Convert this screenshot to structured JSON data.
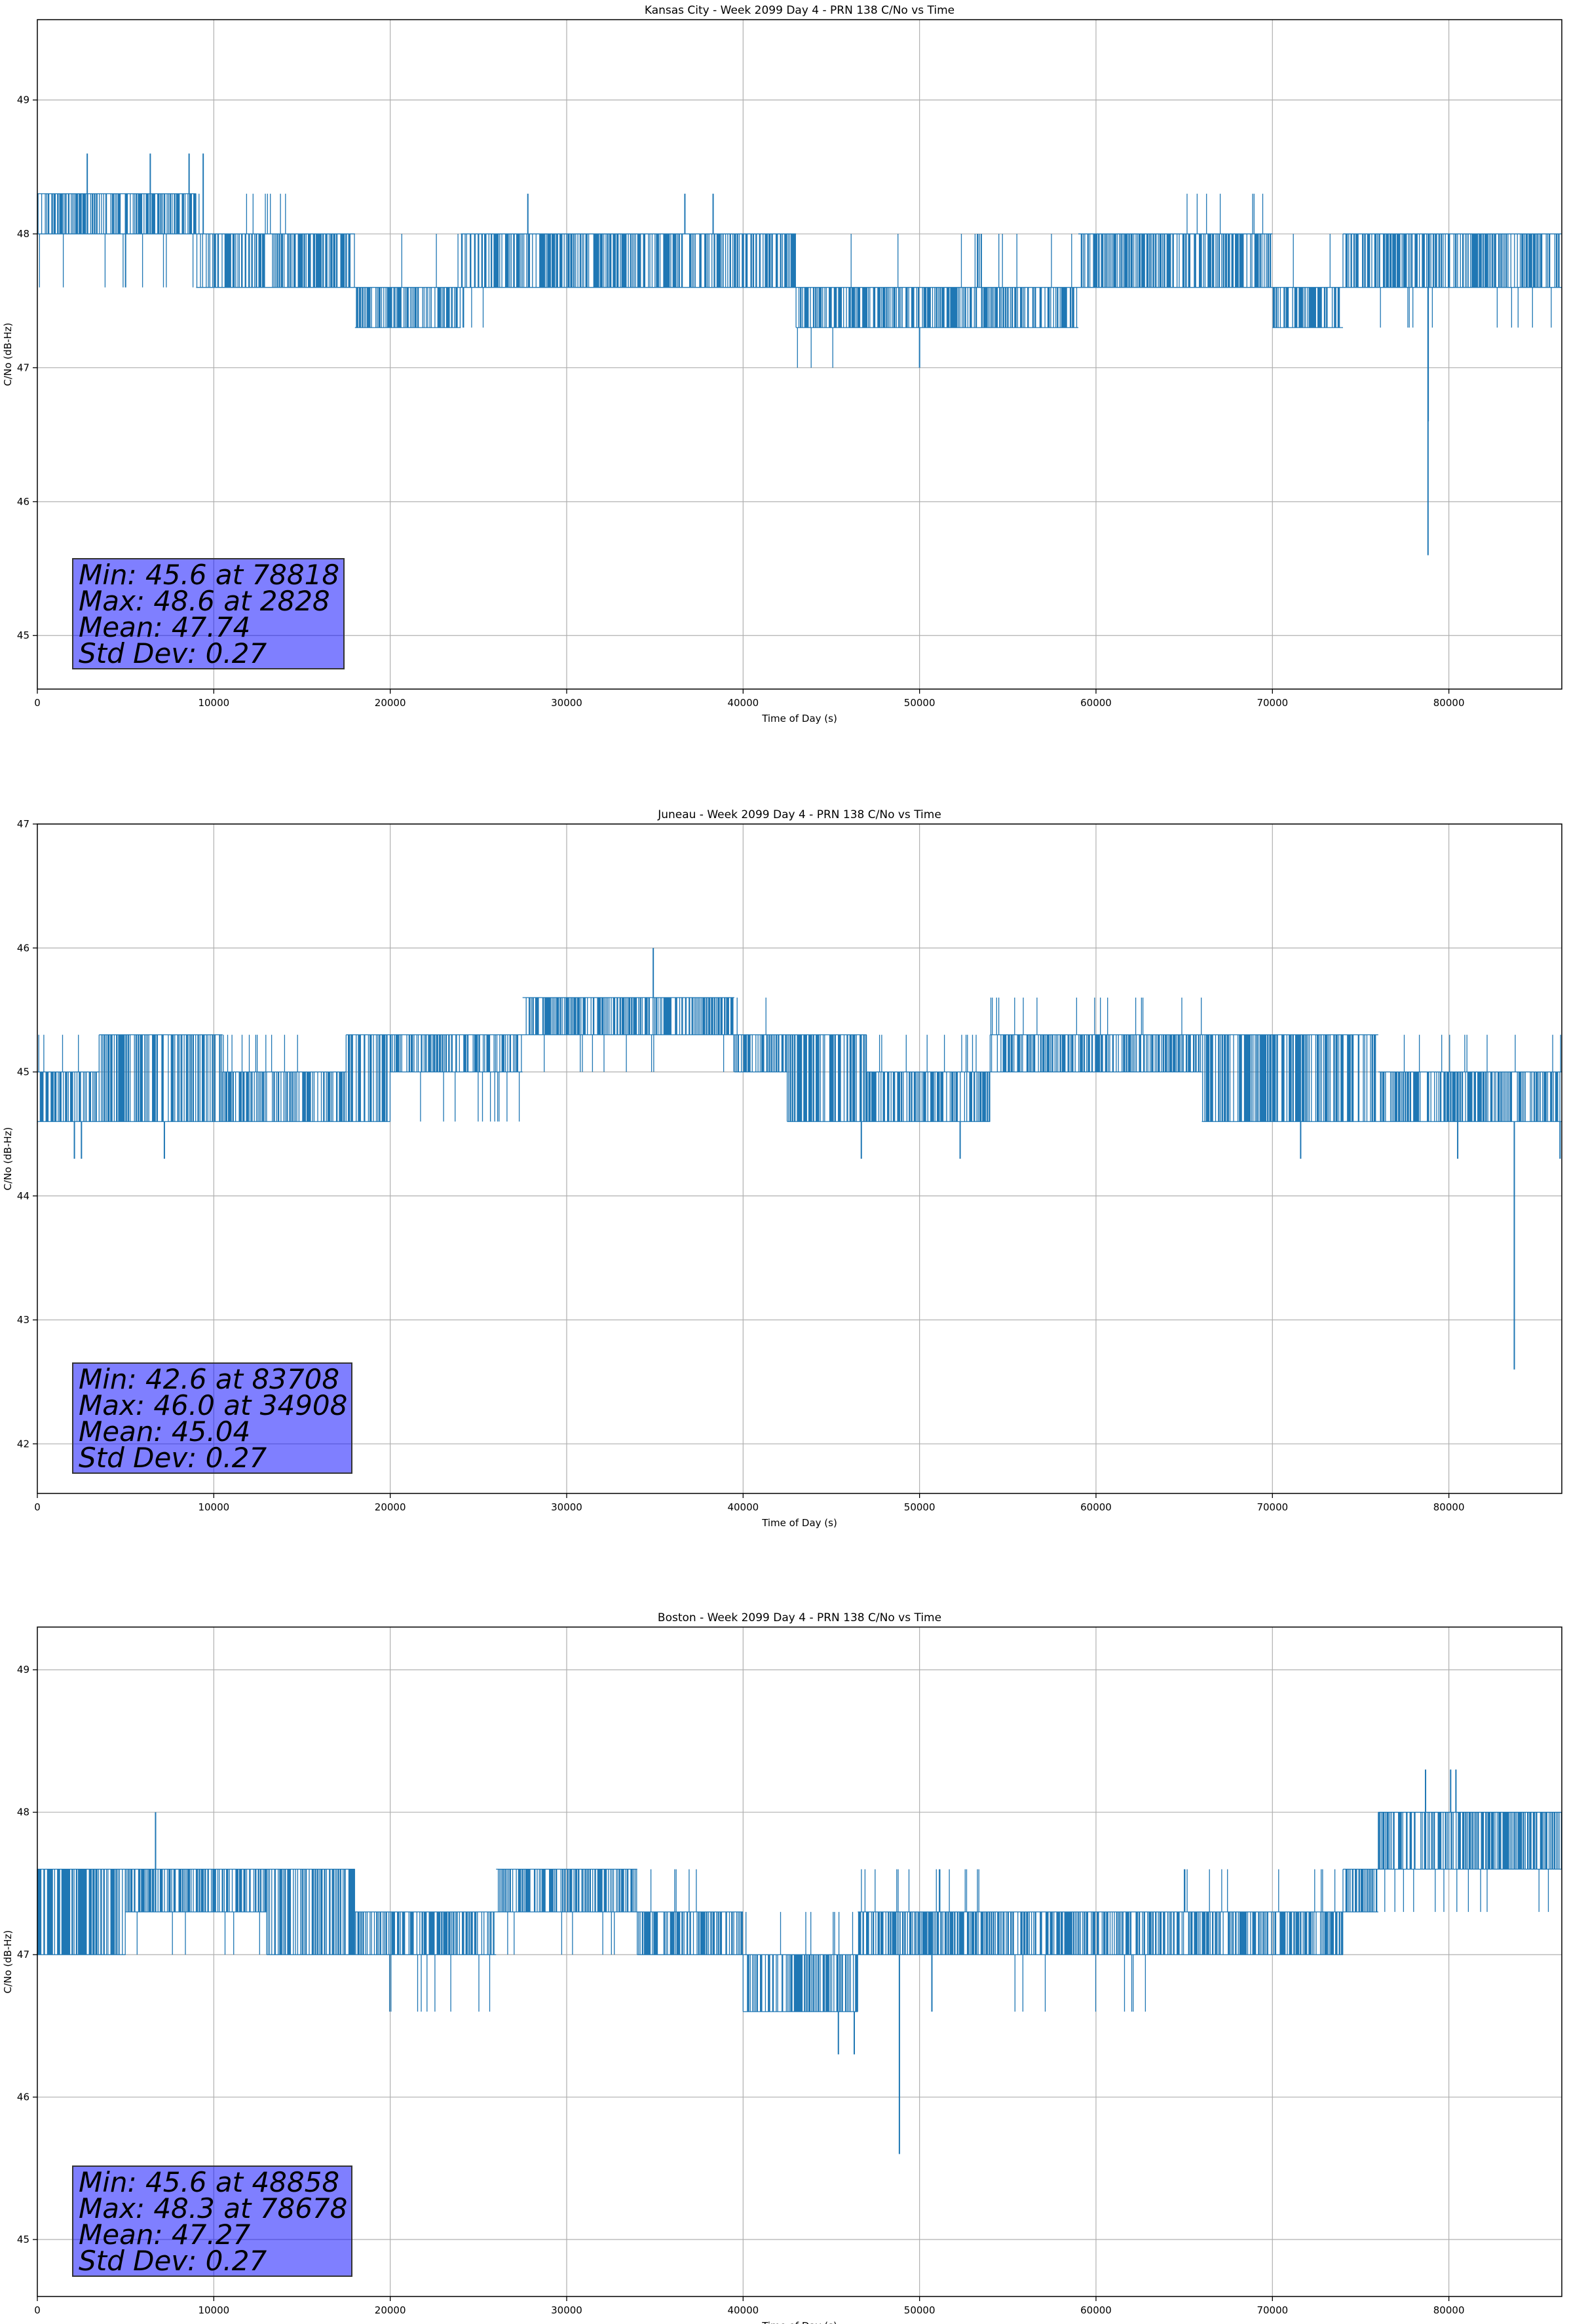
{
  "figure": {
    "background": "#ffffff",
    "line_color": "#1f77b4",
    "grid_color": "#b0b0b0"
  },
  "chart_data": [
    {
      "type": "line",
      "title": "Kansas City - Week 2099 Day 4 - PRN 138 C/No vs Time",
      "xlabel": "Time of Day (s)",
      "ylabel": "C/No (dB-Hz)",
      "xlim": [
        0,
        86400
      ],
      "ylim": [
        44.6,
        49.6
      ],
      "xticks": [
        0,
        10000,
        20000,
        30000,
        40000,
        50000,
        60000,
        70000,
        80000
      ],
      "yticks": [
        45,
        46,
        47,
        48,
        49
      ],
      "grid": true,
      "series": [
        {
          "segments": [
            {
              "x": [
                0,
                9000
              ],
              "lo": 48.0,
              "hi": 48.3,
              "flicker": 47.6
            },
            {
              "x": [
                9000,
                14500
              ],
              "lo": 47.6,
              "hi": 48.0,
              "flicker": 48.3
            },
            {
              "x": [
                14500,
                18000
              ],
              "lo": 47.6,
              "hi": 48.0
            },
            {
              "x": [
                18000,
                24000
              ],
              "lo": 47.3,
              "hi": 47.6,
              "flicker": 48.0
            },
            {
              "x": [
                24000,
                27000
              ],
              "lo": 47.6,
              "hi": 48.0,
              "flicker": 47.3
            },
            {
              "x": [
                27000,
                43000
              ],
              "lo": 47.6,
              "hi": 48.0
            },
            {
              "x": [
                43000,
                46000
              ],
              "lo": 47.3,
              "hi": 47.6,
              "flicker": 47.0
            },
            {
              "x": [
                46000,
                59000
              ],
              "lo": 47.3,
              "hi": 47.6,
              "flicker": 48.0
            },
            {
              "x": [
                59000,
                65000
              ],
              "lo": 47.6,
              "hi": 48.0
            },
            {
              "x": [
                65000,
                70000
              ],
              "lo": 47.6,
              "hi": 48.0,
              "flicker": 48.3
            },
            {
              "x": [
                70000,
                74000
              ],
              "lo": 47.3,
              "hi": 47.6,
              "flicker": 48.0
            },
            {
              "x": [
                74000,
                86400
              ],
              "lo": 47.6,
              "hi": 48.0,
              "flicker": 47.3
            }
          ],
          "spikes": [
            {
              "x": 2828,
              "y": 48.6
            },
            {
              "x": 5000,
              "y": 47.6
            },
            {
              "x": 6400,
              "y": 48.6
            },
            {
              "x": 8600,
              "y": 48.6
            },
            {
              "x": 9400,
              "y": 48.6
            },
            {
              "x": 27800,
              "y": 48.3
            },
            {
              "x": 36700,
              "y": 48.3
            },
            {
              "x": 38300,
              "y": 48.3
            },
            {
              "x": 50000,
              "y": 47.0
            },
            {
              "x": 53500,
              "y": 48.0
            },
            {
              "x": 78818,
              "y": 45.6
            },
            {
              "x": 78830,
              "y": 46.6
            }
          ]
        }
      ],
      "stats": [
        "Min: 45.6 at 78818",
        "Max: 48.6 at 2828",
        "Mean: 47.74",
        "Std Dev: 0.27"
      ]
    },
    {
      "type": "line",
      "title": "Juneau - Week 2099 Day 4 - PRN 138 C/No vs Time",
      "xlabel": "Time of Day (s)",
      "ylabel": "C/No (dB-Hz)",
      "xlim": [
        0,
        86400
      ],
      "ylim": [
        41.6,
        47.0
      ],
      "xticks": [
        0,
        10000,
        20000,
        30000,
        40000,
        50000,
        60000,
        70000,
        80000
      ],
      "yticks": [
        42,
        43,
        44,
        45,
        46,
        47
      ],
      "grid": true,
      "series": [
        {
          "segments": [
            {
              "x": [
                0,
                3500
              ],
              "lo": 44.6,
              "hi": 45.0,
              "flicker": 45.3
            },
            {
              "x": [
                3500,
                10500
              ],
              "lo": 44.6,
              "hi": 45.3
            },
            {
              "x": [
                10500,
                17500
              ],
              "lo": 44.6,
              "hi": 45.0,
              "flicker": 45.3
            },
            {
              "x": [
                17500,
                20000
              ],
              "lo": 44.6,
              "hi": 45.3
            },
            {
              "x": [
                20000,
                27500
              ],
              "lo": 45.0,
              "hi": 45.3,
              "flicker": 44.6
            },
            {
              "x": [
                27500,
                39500
              ],
              "lo": 45.3,
              "hi": 45.6,
              "flicker": 45.0
            },
            {
              "x": [
                39500,
                42500
              ],
              "lo": 45.0,
              "hi": 45.3,
              "flicker": 45.6
            },
            {
              "x": [
                42500,
                47000
              ],
              "lo": 44.6,
              "hi": 45.3
            },
            {
              "x": [
                47000,
                54000
              ],
              "lo": 44.6,
              "hi": 45.0,
              "flicker": 45.3
            },
            {
              "x": [
                54000,
                66000
              ],
              "lo": 45.0,
              "hi": 45.3,
              "flicker": 45.6
            },
            {
              "x": [
                66000,
                76000
              ],
              "lo": 44.6,
              "hi": 45.3
            },
            {
              "x": [
                76000,
                86400
              ],
              "lo": 44.6,
              "hi": 45.0,
              "flicker": 45.3
            }
          ],
          "spikes": [
            {
              "x": 2100,
              "y": 44.3
            },
            {
              "x": 2500,
              "y": 44.3
            },
            {
              "x": 7200,
              "y": 44.3
            },
            {
              "x": 34908,
              "y": 46.0
            },
            {
              "x": 46700,
              "y": 44.3
            },
            {
              "x": 52300,
              "y": 44.3
            },
            {
              "x": 71600,
              "y": 44.3
            },
            {
              "x": 80500,
              "y": 44.3
            },
            {
              "x": 83708,
              "y": 42.6
            },
            {
              "x": 86300,
              "y": 44.3
            }
          ]
        }
      ],
      "stats": [
        "Min: 42.6 at 83708",
        "Max: 46.0 at 34908",
        "Mean: 45.04",
        "Std Dev: 0.27"
      ]
    },
    {
      "type": "line",
      "title": "Boston - Week 2099 Day 4 - PRN 138 C/No vs Time",
      "xlabel": "Time of Day (s)",
      "ylabel": "C/No (dB-Hz)",
      "xlim": [
        0,
        86400
      ],
      "ylim": [
        44.6,
        49.3
      ],
      "xticks": [
        0,
        10000,
        20000,
        30000,
        40000,
        50000,
        60000,
        70000,
        80000
      ],
      "yticks": [
        45,
        46,
        47,
        48,
        49
      ],
      "grid": true,
      "series": [
        {
          "segments": [
            {
              "x": [
                0,
                5000
              ],
              "lo": 47.0,
              "hi": 47.6
            },
            {
              "x": [
                5000,
                13000
              ],
              "lo": 47.3,
              "hi": 47.6,
              "flicker": 47.0
            },
            {
              "x": [
                13000,
                18000
              ],
              "lo": 47.0,
              "hi": 47.6
            },
            {
              "x": [
                18000,
                26000
              ],
              "lo": 47.0,
              "hi": 47.3,
              "flicker": 46.6
            },
            {
              "x": [
                26000,
                34000
              ],
              "lo": 47.3,
              "hi": 47.6,
              "flicker": 47.0
            },
            {
              "x": [
                34000,
                40000
              ],
              "lo": 47.0,
              "hi": 47.3,
              "flicker": 47.6
            },
            {
              "x": [
                40000,
                46500
              ],
              "lo": 46.6,
              "hi": 47.0,
              "flicker": 47.3
            },
            {
              "x": [
                46500,
                55000
              ],
              "lo": 47.0,
              "hi": 47.3,
              "flicker": 47.6
            },
            {
              "x": [
                55000,
                63000
              ],
              "lo": 47.0,
              "hi": 47.3,
              "flicker": 46.6
            },
            {
              "x": [
                63000,
                74000
              ],
              "lo": 47.0,
              "hi": 47.3,
              "flicker": 47.6
            },
            {
              "x": [
                74000,
                76000
              ],
              "lo": 47.3,
              "hi": 47.6,
              "flicker": 48.0
            },
            {
              "x": [
                76000,
                86400
              ],
              "lo": 47.6,
              "hi": 48.0,
              "flicker": 47.3
            }
          ],
          "spikes": [
            {
              "x": 6700,
              "y": 48.0
            },
            {
              "x": 45400,
              "y": 46.3
            },
            {
              "x": 46300,
              "y": 46.3
            },
            {
              "x": 48858,
              "y": 45.6
            },
            {
              "x": 50700,
              "y": 46.6
            },
            {
              "x": 78678,
              "y": 48.3
            },
            {
              "x": 80100,
              "y": 48.3
            },
            {
              "x": 80400,
              "y": 48.3
            }
          ]
        }
      ],
      "stats": [
        "Min: 45.6 at 48858",
        "Max: 48.3 at 78678",
        "Mean: 47.27",
        "Std Dev: 0.27"
      ]
    }
  ]
}
